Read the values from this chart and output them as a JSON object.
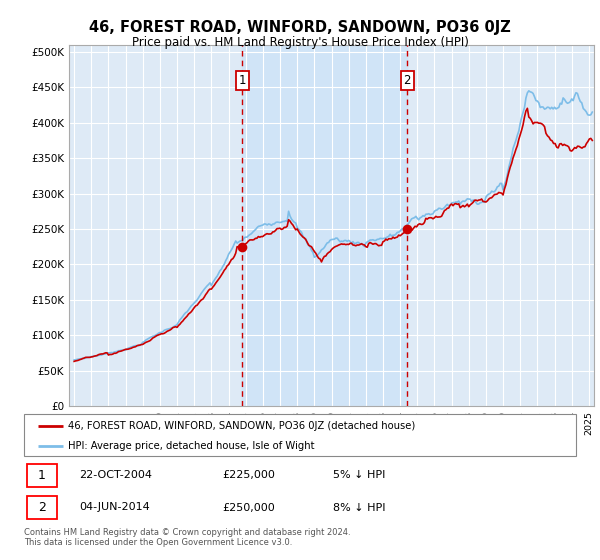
{
  "title": "46, FOREST ROAD, WINFORD, SANDOWN, PO36 0JZ",
  "subtitle": "Price paid vs. HM Land Registry's House Price Index (HPI)",
  "hpi_label": "HPI: Average price, detached house, Isle of Wight",
  "price_label": "46, FOREST ROAD, WINFORD, SANDOWN, PO36 0JZ (detached house)",
  "footer": "Contains HM Land Registry data © Crown copyright and database right 2024.\nThis data is licensed under the Open Government Licence v3.0.",
  "sale1_x": 2004.81,
  "sale1_price": 225000,
  "sale2_x": 2014.42,
  "sale2_price": 250000,
  "hpi_color": "#7dbde8",
  "price_color": "#cc0000",
  "shade_color": "#d0e4f7",
  "bg_plot": "#deeaf6",
  "grid_color": "#ffffff",
  "ylim": [
    0,
    510000
  ],
  "xlim_left": 1994.7,
  "xlim_right": 2025.3,
  "yticks": [
    0,
    50000,
    100000,
    150000,
    200000,
    250000,
    300000,
    350000,
    400000,
    450000,
    500000
  ]
}
